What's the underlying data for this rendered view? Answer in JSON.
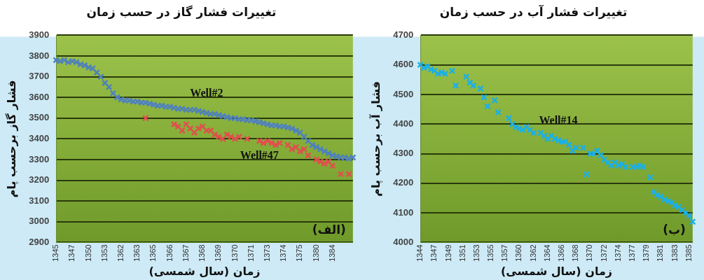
{
  "chart_data": [
    {
      "type": "scatter",
      "title": "تغییرات فشار گاز در حسب زمان",
      "xlabel": "زمان (سال شمسی)",
      "ylabel": "فشار گاز برحسب پام",
      "categories": [
        "1345",
        null,
        null,
        null,
        "1347",
        null,
        null,
        null,
        "1350",
        null,
        null,
        null,
        "1353",
        null,
        null,
        null,
        "1362",
        null,
        null,
        null,
        "1363",
        null,
        null,
        null,
        "1365",
        null,
        null,
        null,
        "1366",
        null,
        null,
        null,
        "1367",
        null,
        null,
        null,
        "1368",
        null,
        null,
        null,
        "1369",
        null,
        null,
        null,
        "1370",
        null,
        null,
        null,
        "1371",
        null,
        null,
        null,
        "1373",
        null,
        null,
        null,
        "1374",
        null,
        null,
        null,
        "1375",
        null,
        null,
        null,
        "1380",
        null,
        null,
        null,
        "1384",
        null,
        null,
        null,
        null,
        null
      ],
      "series": [
        {
          "name": "Well#2",
          "color": "#4f81bd",
          "marker": "cross",
          "values": [
            3780,
            3775,
            3780,
            3770,
            3775,
            3770,
            3760,
            3755,
            3745,
            3740,
            3720,
            3700,
            3670,
            3650,
            3620,
            3600,
            3590,
            3585,
            3585,
            3580,
            3580,
            3575,
            3575,
            3570,
            3565,
            3560,
            3560,
            3555,
            3555,
            3550,
            3545,
            3545,
            3540,
            3540,
            3540,
            3535,
            3530,
            3525,
            3520,
            3520,
            3515,
            3510,
            3505,
            3500,
            3500,
            3495,
            3495,
            3490,
            3490,
            3485,
            3480,
            3475,
            3470,
            3465,
            3465,
            3460,
            3460,
            3455,
            3450,
            3440,
            3430,
            3410,
            3390,
            3370,
            3360,
            3350,
            3340,
            3330,
            3320,
            3315,
            3310,
            3310,
            3305,
            3310
          ]
        },
        {
          "name": "Well#47",
          "color": "#e0504c",
          "marker": "cross",
          "values": [
            null,
            null,
            null,
            null,
            null,
            null,
            null,
            null,
            null,
            null,
            null,
            null,
            null,
            null,
            null,
            null,
            null,
            null,
            null,
            null,
            null,
            null,
            3500,
            null,
            null,
            null,
            null,
            null,
            null,
            3470,
            3460,
            3440,
            3470,
            3450,
            3430,
            3450,
            3460,
            3440,
            3440,
            3420,
            3410,
            3400,
            3420,
            3410,
            3400,
            3410,
            null,
            3400,
            null,
            null,
            3390,
            3380,
            3390,
            3380,
            3370,
            3380,
            null,
            3370,
            3350,
            3360,
            3340,
            3350,
            3320,
            null,
            3300,
            3290,
            3280,
            3290,
            3270,
            null,
            3230,
            null,
            3230,
            null
          ]
        }
      ],
      "ylim": [
        2900,
        3900
      ],
      "yticks": [
        2900,
        3000,
        3100,
        3200,
        3300,
        3400,
        3500,
        3600,
        3700,
        3800,
        3900
      ],
      "grid": "y",
      "legend": false,
      "annotations": [
        "(الف)"
      ]
    },
    {
      "type": "scatter",
      "title": "تغییرات فشار آب در حسب زمان",
      "xlabel": "زمان (سال شمسی)",
      "ylabel": "فشار آب برحسب پام",
      "categories": [
        "1344",
        null,
        null,
        null,
        "1347",
        null,
        null,
        null,
        "1349",
        null,
        null,
        null,
        "1351",
        null,
        null,
        null,
        "1353",
        null,
        null,
        null,
        "1355",
        null,
        null,
        null,
        "1357",
        null,
        null,
        null,
        "1360",
        null,
        null,
        null,
        "1362",
        null,
        null,
        null,
        "1364",
        null,
        null,
        null,
        "1366",
        null,
        null,
        null,
        "1368",
        null,
        null,
        null,
        "1370",
        null,
        null,
        null,
        "1372",
        null,
        null,
        null,
        "1374",
        null,
        null,
        null,
        "1377",
        null,
        null,
        null,
        "1379",
        null,
        null,
        null,
        "1381",
        null,
        null,
        null,
        "1383",
        null,
        null,
        null,
        "1385",
        null
      ],
      "series": [
        {
          "name": "Well#14",
          "color": "#1ab0e8",
          "marker": "cross",
          "values": [
            4600,
            4590,
            4595,
            4585,
            4580,
            4570,
            4575,
            4570,
            null,
            4580,
            4530,
            null,
            null,
            4560,
            4540,
            4530,
            null,
            4520,
            4490,
            4460,
            null,
            4480,
            4440,
            null,
            null,
            4420,
            4400,
            4390,
            4385,
            4380,
            4390,
            4380,
            4370,
            null,
            4370,
            4360,
            4350,
            4360,
            4350,
            4345,
            4340,
            4340,
            4330,
            4310,
            4320,
            null,
            4320,
            4230,
            4300,
            4300,
            4310,
            4295,
            4280,
            4270,
            4260,
            4270,
            4260,
            4265,
            4255,
            null,
            4255,
            4255,
            4260,
            4255,
            null,
            4220,
            4170,
            4160,
            4155,
            4145,
            4140,
            4135,
            4125,
            4120,
            4110,
            4100,
            4090,
            4070
          ]
        }
      ],
      "ylim": [
        4000,
        4700
      ],
      "yticks": [
        4000,
        4100,
        4200,
        4300,
        4400,
        4500,
        4600,
        4700
      ],
      "grid": "y",
      "legend": false,
      "annotations": [
        "(ب)"
      ]
    }
  ]
}
